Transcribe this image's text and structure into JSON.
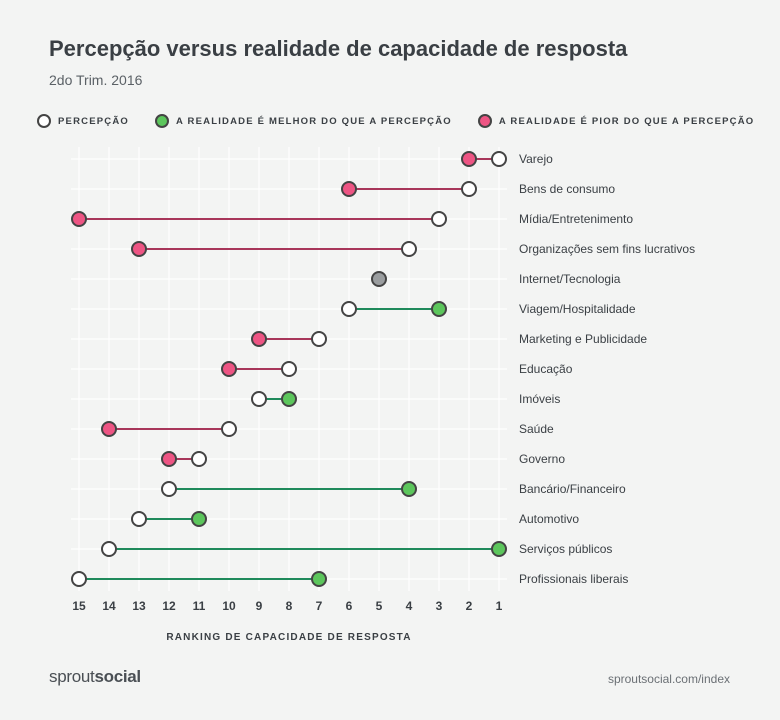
{
  "header": {
    "title": "Percepção versus realidade de capacidade de resposta",
    "subtitle": "2do Trim. 2016"
  },
  "legend": [
    {
      "label": "PERCEPÇÃO",
      "fill": "#ffffff"
    },
    {
      "label": "A REALIDADE É MELHOR DO QUE A PERCEPÇÃO",
      "fill": "#5cc65c"
    },
    {
      "label": "A REALIDADE É PIOR DO QUE A PERCEPÇÃO",
      "fill": "#ee5584"
    }
  ],
  "colors": {
    "perception": "#ffffff",
    "better": "#5cc65c",
    "worse": "#ee5584",
    "better_line": "#1f8a5b",
    "worse_line": "#a8365a",
    "equal": "#9a9d9f",
    "grid": "#ffffff",
    "dot_border": "#444444"
  },
  "chart_data": {
    "type": "dumbbell",
    "xlabel": "RANKING DE CAPACIDADE DE RESPOSTA",
    "xlim": [
      15,
      1
    ],
    "x_reversed": true,
    "x_ticks": [
      15,
      14,
      13,
      12,
      11,
      10,
      9,
      8,
      7,
      6,
      5,
      4,
      3,
      2,
      1
    ],
    "grid": true,
    "series": [
      {
        "name": "PERCEPÇÃO",
        "values": [
          1,
          2,
          3,
          4,
          5,
          6,
          7,
          8,
          9,
          10,
          11,
          12,
          13,
          14,
          15
        ]
      },
      {
        "name": "REALIDADE",
        "values": [
          2,
          6,
          15,
          13,
          5,
          3,
          9,
          10,
          8,
          14,
          12,
          4,
          11,
          1,
          7
        ]
      }
    ],
    "categories": [
      "Varejo",
      "Bens de consumo",
      "Mídia/Entretenimento",
      "Organizações sem fins lucrativos",
      "Internet/Tecnologia",
      "Viagem/Hospitalidade",
      "Marketing e Publicidade",
      "Educação",
      "Imóveis",
      "Saúde",
      "Governo",
      "Bancário/Financeiro",
      "Automotivo",
      "Serviços públicos",
      "Profissionais liberais"
    ]
  },
  "footer": {
    "logo_light": "sprout",
    "logo_bold": "social",
    "url": "sproutsocial.com/index"
  }
}
